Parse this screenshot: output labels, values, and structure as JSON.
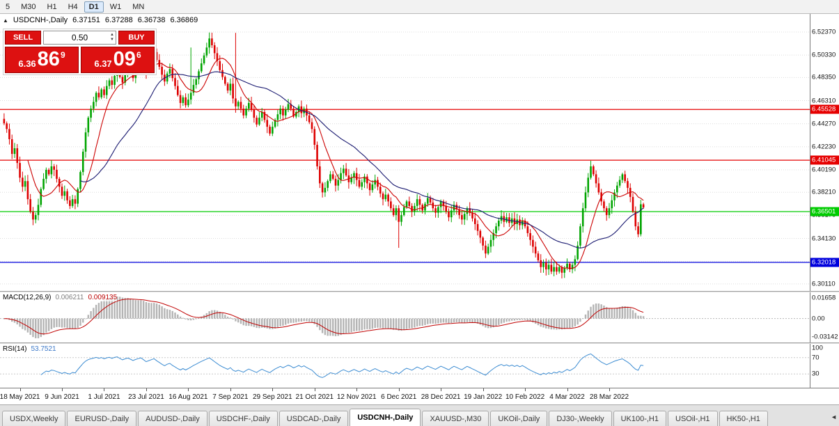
{
  "toolbar": {
    "periods": [
      "5",
      "M30",
      "H1",
      "H4",
      "D1",
      "W1",
      "MN"
    ],
    "active": "D1"
  },
  "title_overlay": {
    "symbol": "USDCNH-,Daily",
    "open": "6.37151",
    "high": "6.37288",
    "low": "6.36738",
    "close": "6.36869"
  },
  "icons": {
    "toggle": "▲",
    "spin_up": "▲",
    "spin_down": "▼",
    "tab_scroll": "◄"
  },
  "trade": {
    "sell_label": "SELL",
    "buy_label": "BUY",
    "volume": "0.50",
    "sell_price": {
      "main": "6.36",
      "pips": "86",
      "point": "9"
    },
    "buy_price": {
      "main": "6.37",
      "pips": "09",
      "point": "6"
    }
  },
  "colors": {
    "up": "#00a400",
    "down": "#dd0000",
    "macd_hist": "#b4b4b4",
    "macd_signal": "#c00000",
    "rsi": "#3c8cd2"
  },
  "price_axis": {
    "ticks": [
      "6.52370",
      "6.50330",
      "6.48350",
      "6.46310",
      "6.44270",
      "6.42230",
      "6.40190",
      "6.38210",
      "6.36170",
      "6.34130",
      "6.32090",
      "6.30110"
    ]
  },
  "price_lines": [
    {
      "name": "resistance-line-upper",
      "value": 6.45528,
      "label": "6.45528",
      "color": "#e60000"
    },
    {
      "name": "resistance-line-lower",
      "value": 6.41045,
      "label": "6.41045",
      "color": "#e60000"
    },
    {
      "name": "support-line-green",
      "value": 6.36501,
      "label": "6.36501",
      "color": "#00cc00"
    },
    {
      "name": "support-line-blue",
      "value": 6.32018,
      "label": "6.32018",
      "color": "#0000dd"
    }
  ],
  "macd": {
    "label": "MACD(12,26,9)",
    "value_main": "0.006211",
    "value_signal": "0.009135",
    "axis": [
      "0.01658",
      "0.00",
      "-0.03142"
    ],
    "params": {
      "fast": 12,
      "slow": 26,
      "signal": 9
    }
  },
  "rsi": {
    "label": "RSI(14)",
    "value": "53.7521",
    "period": 14,
    "levels": [
      "100",
      "70",
      "30"
    ]
  },
  "tabs": {
    "items": [
      "USDX,Weekly",
      "EURUSD-,Daily",
      "AUDUSD-,Daily",
      "USDCHF-,Daily",
      "USDCAD-,Daily",
      "USDCNH-,Daily",
      "XAUUSD-,M30",
      "UKOil-,Daily",
      "DJ30-,Weekly",
      "UK100-,H1",
      "USOil-,H1",
      "HK50-,H1"
    ],
    "active": "USDCNH-,Daily"
  },
  "chart_data": {
    "type": "candlestick",
    "title": "USDCNH-,Daily",
    "symbol": "USDCNH-",
    "timeframe": "Daily",
    "current_ohlc": {
      "open": 6.37151,
      "high": 6.37288,
      "low": 6.36738,
      "close": 6.36869
    },
    "y_render_range": [
      6.2949,
      6.5397
    ],
    "first_open": 6.447,
    "closes": [
      6.443,
      6.438,
      6.429,
      6.416,
      6.421,
      6.408,
      6.395,
      6.387,
      6.392,
      6.376,
      6.365,
      6.358,
      6.362,
      6.371,
      6.385,
      6.394,
      6.402,
      6.398,
      6.405,
      6.402,
      6.394,
      6.387,
      6.379,
      6.383,
      6.375,
      6.37,
      6.376,
      6.372,
      6.385,
      6.4,
      6.418,
      6.435,
      6.448,
      6.456,
      6.462,
      6.47,
      6.466,
      6.473,
      6.468,
      6.476,
      6.481,
      6.477,
      6.485,
      6.49,
      6.484,
      6.479,
      6.486,
      6.492,
      6.488,
      6.483,
      6.49,
      6.496,
      6.501,
      6.495,
      6.488,
      6.494,
      6.5,
      6.506,
      6.499,
      6.493,
      6.486,
      6.48,
      6.487,
      6.491,
      6.483,
      6.476,
      6.468,
      6.461,
      6.466,
      6.459,
      6.464,
      6.47,
      6.477,
      6.482,
      6.489,
      6.496,
      6.503,
      6.51,
      6.518,
      6.512,
      6.505,
      6.498,
      6.49,
      6.484,
      6.478,
      6.472,
      6.478,
      6.465,
      6.458,
      6.462,
      6.456,
      6.45,
      6.456,
      6.461,
      6.455,
      6.448,
      6.442,
      6.448,
      6.453,
      6.446,
      6.44,
      6.434,
      6.44,
      6.446,
      6.451,
      6.456,
      6.45,
      6.455,
      6.46,
      6.456,
      6.449,
      6.453,
      6.458,
      6.452,
      6.456,
      6.45,
      6.444,
      6.438,
      6.424,
      6.405,
      6.39,
      6.382,
      6.386,
      6.392,
      6.398,
      6.394,
      6.388,
      6.393,
      6.399,
      6.403,
      6.397,
      6.391,
      6.395,
      6.399,
      6.393,
      6.387,
      6.391,
      6.396,
      6.39,
      6.384,
      6.389,
      6.393,
      6.387,
      6.381,
      6.376,
      6.38,
      6.374,
      6.368,
      6.362,
      6.368,
      6.356,
      6.362,
      6.369,
      6.374,
      6.37,
      6.365,
      6.37,
      6.376,
      6.371,
      6.366,
      6.372,
      6.377,
      6.373,
      6.368,
      6.364,
      6.369,
      6.374,
      6.37,
      6.365,
      6.36,
      6.366,
      6.371,
      6.367,
      6.362,
      6.358,
      6.363,
      6.368,
      6.364,
      6.359,
      6.354,
      6.348,
      6.342,
      6.335,
      6.328,
      6.334,
      6.34,
      6.346,
      6.352,
      6.357,
      6.361,
      6.356,
      6.36,
      6.355,
      6.359,
      6.354,
      6.358,
      6.353,
      6.357,
      6.352,
      6.346,
      6.34,
      6.334,
      6.328,
      6.322,
      6.316,
      6.32,
      6.314,
      6.318,
      6.312,
      6.316,
      6.312,
      6.316,
      6.311,
      6.315,
      6.319,
      6.314,
      6.318,
      6.323,
      6.335,
      6.352,
      6.368,
      6.382,
      6.395,
      6.405,
      6.398,
      6.39,
      6.382,
      6.374,
      6.368,
      6.362,
      6.368,
      6.375,
      6.382,
      6.388,
      6.393,
      6.398,
      6.392,
      6.386,
      6.378,
      6.365,
      6.352,
      6.345,
      6.3715,
      6.3687
    ],
    "wick_overrides": {
      "11": {
        "l": 6.353
      },
      "71": {
        "h": 6.51
      },
      "88": {
        "h": 6.523
      },
      "150": {
        "l": 6.333
      },
      "183": {
        "l": 6.324
      },
      "212": {
        "l": 6.306
      },
      "223": {
        "h": 6.41
      },
      "243": {
        "h": 6.37288,
        "l": 6.36738
      }
    },
    "overlays": [
      {
        "name": "ma-fast",
        "period": 10,
        "color": "#cc0000"
      },
      {
        "name": "ma-slow",
        "period": 30,
        "color": "#191970"
      }
    ],
    "x_tick_labels": [
      "18 May 2021",
      "9 Jun 2021",
      "1 Jul 2021",
      "23 Jul 2021",
      "16 Aug 2021",
      "7 Sep 2021",
      "29 Sep 2021",
      "21 Oct 2021",
      "12 Nov 2021",
      "6 Dec 2021",
      "28 Dec 2021",
      "19 Jan 2022",
      "10 Feb 2022",
      "4 Mar 2022",
      "28 Mar 2022"
    ],
    "x_tick_first_bar": 6,
    "x_tick_step": 16
  }
}
